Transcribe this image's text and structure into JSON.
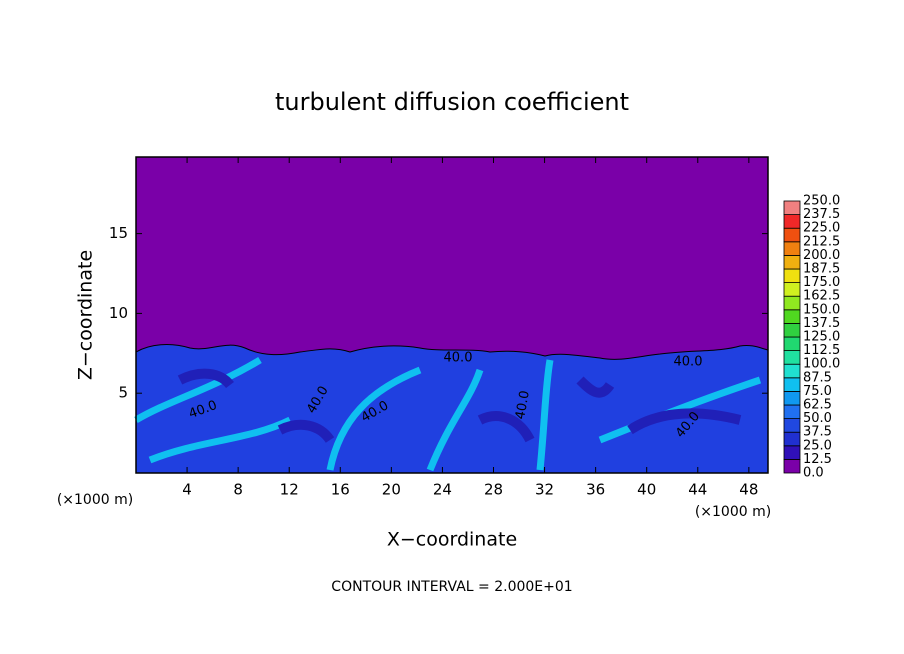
{
  "chart_data": {
    "type": "contour",
    "title": "turbulent diffusion coefficient",
    "x_label": "X−coordinate",
    "y_label": "Z−coordinate",
    "x_unit_left": "(×1000 m)",
    "x_unit_right": "(×1000 m)",
    "note": "CONTOUR INTERVAL = 2.000E+01",
    "xlim": [
      0,
      49.5
    ],
    "ylim": [
      0,
      19.8
    ],
    "xticks": [
      4,
      8,
      12,
      16,
      20,
      24,
      28,
      32,
      36,
      40,
      44,
      48
    ],
    "yticks": [
      5,
      10,
      15
    ],
    "contour_labels": [
      "40.0",
      "40.0",
      "40.0",
      "40.0",
      "40.0",
      "40.0",
      "40.0"
    ],
    "colorbar": {
      "levels": [
        {
          "value": 0,
          "label": "0.0"
        },
        {
          "value": 12.5,
          "label": "12.5"
        },
        {
          "value": 25,
          "label": "25.0"
        },
        {
          "value": 37.5,
          "label": "37.5"
        },
        {
          "value": 50,
          "label": "50.0"
        },
        {
          "value": 62.5,
          "label": "62.5"
        },
        {
          "value": 75,
          "label": "75.0"
        },
        {
          "value": 87.5,
          "label": "87.5"
        },
        {
          "value": 100,
          "label": "100.0"
        },
        {
          "value": 112.5,
          "label": "112.5"
        },
        {
          "value": 125,
          "label": "125.0"
        },
        {
          "value": 137.5,
          "label": "137.5"
        },
        {
          "value": 150,
          "label": "150.0"
        },
        {
          "value": 162.5,
          "label": "162.5"
        },
        {
          "value": 175,
          "label": "175.0"
        },
        {
          "value": 187.5,
          "label": "187.5"
        },
        {
          "value": 200,
          "label": "200.0"
        },
        {
          "value": 212.5,
          "label": "212.5"
        },
        {
          "value": 225,
          "label": "225.0"
        },
        {
          "value": 237.5,
          "label": "237.5"
        },
        {
          "value": 250,
          "label": "250.0"
        }
      ],
      "colors": [
        "#7a00a8",
        "#3010b8",
        "#2030d0",
        "#2048e0",
        "#2070f0",
        "#1098f0",
        "#10c0f0",
        "#20e0d0",
        "#20e0a0",
        "#20d870",
        "#30d040",
        "#50d820",
        "#90e820",
        "#d0f020",
        "#f0e010",
        "#f0b010",
        "#f08010",
        "#f05010",
        "#f02828",
        "#f08080"
      ]
    }
  }
}
